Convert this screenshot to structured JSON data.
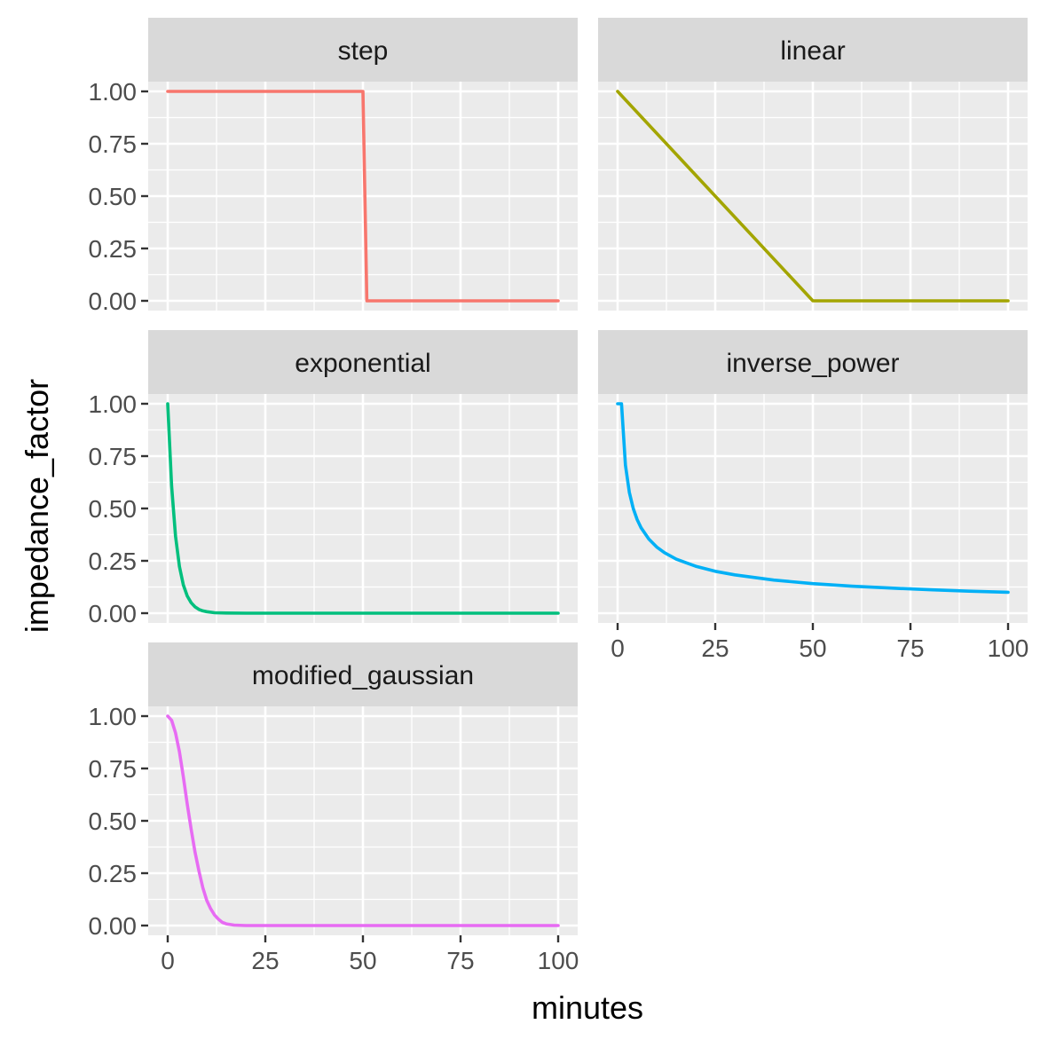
{
  "chart_data": {
    "type": "line",
    "layout": "facet_wrap",
    "xlabel": "minutes",
    "ylabel": "impedance_factor",
    "xlim": [
      0,
      100
    ],
    "ylim": [
      0,
      1
    ],
    "x_ticks": [
      "0",
      "25",
      "50",
      "75",
      "100"
    ],
    "x_tick_values": [
      0,
      25,
      50,
      75,
      100
    ],
    "y_ticks": [
      "0.00",
      "0.25",
      "0.50",
      "0.75",
      "1.00"
    ],
    "y_tick_values": [
      0,
      0.25,
      0.5,
      0.75,
      1
    ],
    "legend": "none",
    "panels": [
      {
        "name": "step",
        "color": "#F8766D",
        "x": [
          0,
          50,
          51,
          100
        ],
        "y": [
          1,
          1,
          0,
          0
        ]
      },
      {
        "name": "linear",
        "color": "#A3A500",
        "x": [
          0,
          50,
          100
        ],
        "y": [
          1,
          0,
          0
        ]
      },
      {
        "name": "exponential",
        "color": "#00BF7D",
        "x": [
          0,
          1,
          2,
          3,
          4,
          5,
          6,
          7,
          8,
          9,
          10,
          12,
          15,
          20,
          30,
          50,
          100
        ],
        "y": [
          1,
          0.607,
          0.368,
          0.223,
          0.135,
          0.082,
          0.05,
          0.03,
          0.018,
          0.011,
          0.007,
          0.002,
          0.001,
          0,
          0,
          0,
          0
        ]
      },
      {
        "name": "inverse_power",
        "color": "#00B0F6",
        "x": [
          0,
          1,
          2,
          3,
          4,
          5,
          6,
          8,
          10,
          12,
          15,
          20,
          25,
          30,
          40,
          50,
          60,
          70,
          80,
          90,
          100
        ],
        "y": [
          1,
          1,
          0.707,
          0.577,
          0.5,
          0.447,
          0.408,
          0.354,
          0.316,
          0.289,
          0.258,
          0.224,
          0.2,
          0.183,
          0.158,
          0.141,
          0.129,
          0.12,
          0.112,
          0.105,
          0.1
        ]
      },
      {
        "name": "modified_gaussian",
        "color": "#E76BF3",
        "x": [
          0,
          1,
          2,
          3,
          4,
          5,
          6,
          7,
          8,
          9,
          10,
          11,
          12,
          13,
          14,
          15,
          17,
          20,
          30,
          50,
          100
        ],
        "y": [
          1,
          0.98,
          0.92,
          0.83,
          0.71,
          0.58,
          0.46,
          0.35,
          0.26,
          0.18,
          0.12,
          0.08,
          0.05,
          0.03,
          0.015,
          0.008,
          0.002,
          0,
          0,
          0,
          0
        ]
      }
    ]
  }
}
